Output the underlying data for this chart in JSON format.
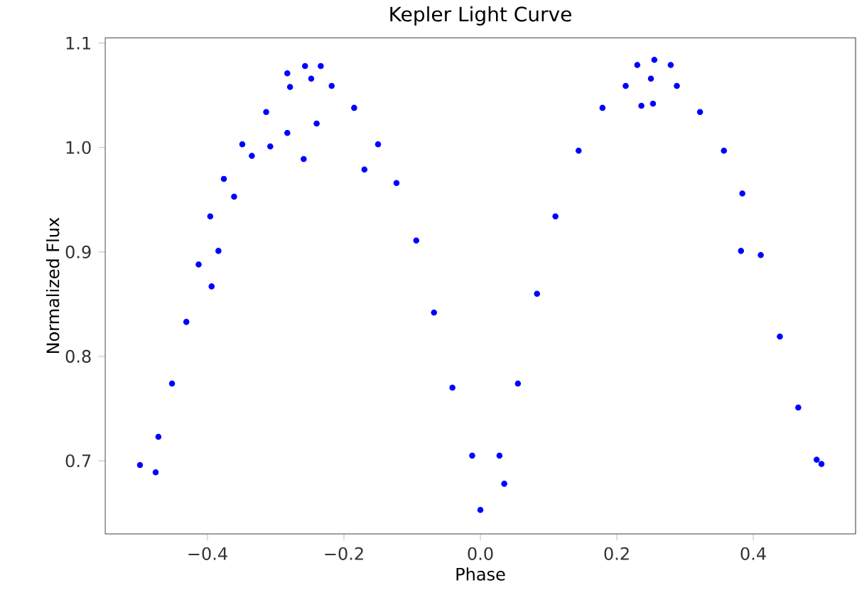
{
  "chart_data": {
    "type": "scatter",
    "title": "Kepler Light Curve",
    "xlabel": "Phase",
    "ylabel": "Normalized Flux",
    "xlim": [
      -0.55,
      0.55
    ],
    "xticks": [
      {
        "value": -0.4,
        "label": "−0.4"
      },
      {
        "value": -0.2,
        "label": "−0.2"
      },
      {
        "value": 0.0,
        "label": "0.0"
      },
      {
        "value": 0.2,
        "label": "0.2"
      },
      {
        "value": 0.4,
        "label": "0.4"
      }
    ],
    "ylim": [
      0.63,
      1.105
    ],
    "yticks": [
      {
        "value": 0.7,
        "label": "0.7"
      },
      {
        "value": 0.8,
        "label": "0.8"
      },
      {
        "value": 0.9,
        "label": "0.9"
      },
      {
        "value": 1.0,
        "label": "1.0"
      },
      {
        "value": 1.1,
        "label": "1.1"
      }
    ],
    "grid": false,
    "marker": "circle",
    "series": [
      {
        "color": "#0000ff",
        "x": [
          -0.499,
          -0.472,
          -0.452,
          -0.431,
          -0.413,
          -0.396,
          -0.376,
          -0.349,
          -0.314,
          -0.279,
          -0.248,
          -0.218,
          -0.185,
          -0.15,
          -0.123,
          -0.094,
          -0.068,
          -0.041,
          -0.012,
          0.0,
          0.028,
          0.055,
          0.083,
          0.11,
          0.144,
          0.179,
          0.213,
          0.25,
          0.288,
          0.322,
          0.357,
          0.384,
          0.411,
          0.439,
          0.466,
          0.493,
          0.5,
          -0.259,
          -0.24,
          -0.17,
          -0.361,
          -0.384,
          -0.394,
          -0.283,
          -0.308,
          -0.335,
          -0.476,
          -0.257,
          -0.234,
          -0.283,
          0.382,
          0.255,
          0.23,
          0.236,
          0.253,
          0.035,
          0.279
        ],
        "values": [
          0.696,
          0.723,
          0.774,
          0.833,
          0.888,
          0.934,
          0.97,
          1.003,
          1.034,
          1.058,
          1.066,
          1.059,
          1.038,
          1.003,
          0.966,
          0.911,
          0.842,
          0.77,
          0.705,
          0.653,
          0.705,
          0.774,
          0.86,
          0.934,
          0.997,
          1.038,
          1.059,
          1.066,
          1.059,
          1.034,
          0.997,
          0.956,
          0.897,
          0.819,
          0.751,
          0.701,
          0.697,
          0.989,
          1.023,
          0.979,
          0.953,
          0.901,
          0.867,
          1.014,
          1.001,
          0.992,
          0.689,
          1.078,
          1.078,
          1.071,
          0.901,
          1.084,
          1.079,
          1.04,
          1.042,
          0.678,
          1.079
        ]
      }
    ]
  }
}
